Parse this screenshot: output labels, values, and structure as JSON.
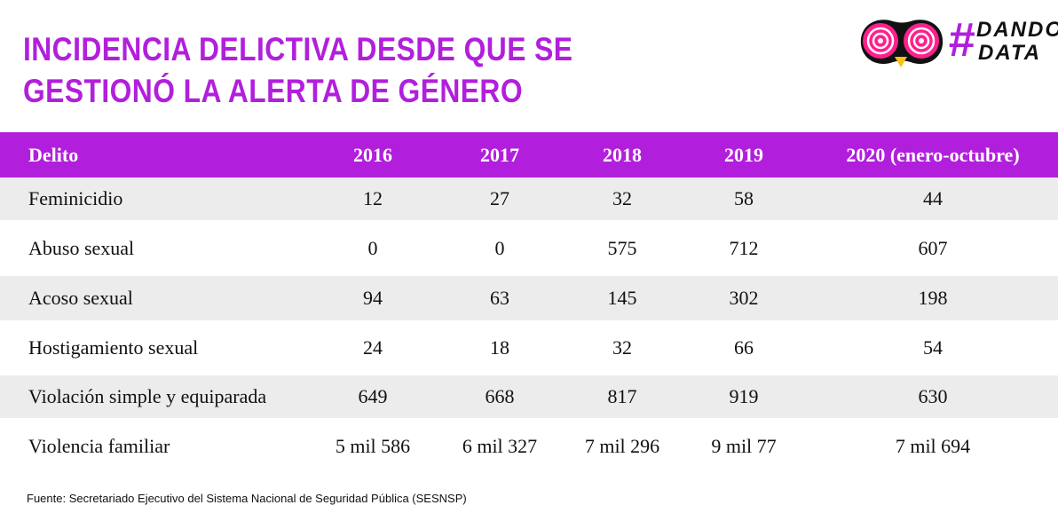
{
  "title": {
    "line1": "INCIDENCIA DELICTIVA DESDE QUE SE",
    "line2": "GESTIONÓ LA ALERTA DE GÉNERO"
  },
  "logo": {
    "hash": "#",
    "line1": "DANDO",
    "line2": "DATA"
  },
  "colors": {
    "accent": "#b21fdc",
    "logo_pink": "#ff1f8e",
    "logo_beak": "#f6c21b",
    "shade": "#ececec"
  },
  "chart_data": {
    "type": "table",
    "title": "INCIDENCIA DELICTIVA DESDE QUE SE GESTIONÓ LA ALERTA DE GÉNERO",
    "columns": [
      "Delito",
      "2016",
      "2017",
      "2018",
      "2019",
      "2020 (enero-octubre)"
    ],
    "rows": [
      [
        "Feminicidio",
        "12",
        "27",
        "32",
        "58",
        "44"
      ],
      [
        "Abuso sexual",
        "0",
        "0",
        "575",
        "712",
        "607"
      ],
      [
        "Acoso sexual",
        "94",
        "63",
        "145",
        "302",
        "198"
      ],
      [
        "Hostigamiento sexual",
        "24",
        "18",
        "32",
        "66",
        "54"
      ],
      [
        "Violación simple y equiparada",
        "649",
        "668",
        "817",
        "919",
        "630"
      ],
      [
        "Violencia familiar",
        "5 mil 586",
        "6 mil 327",
        "7 mil 296",
        "9 mil 77",
        "7 mil 694"
      ]
    ]
  },
  "source": "Fuente: Secretariado Ejecutivo del Sistema Nacional de Seguridad Pública (SESNSP)"
}
